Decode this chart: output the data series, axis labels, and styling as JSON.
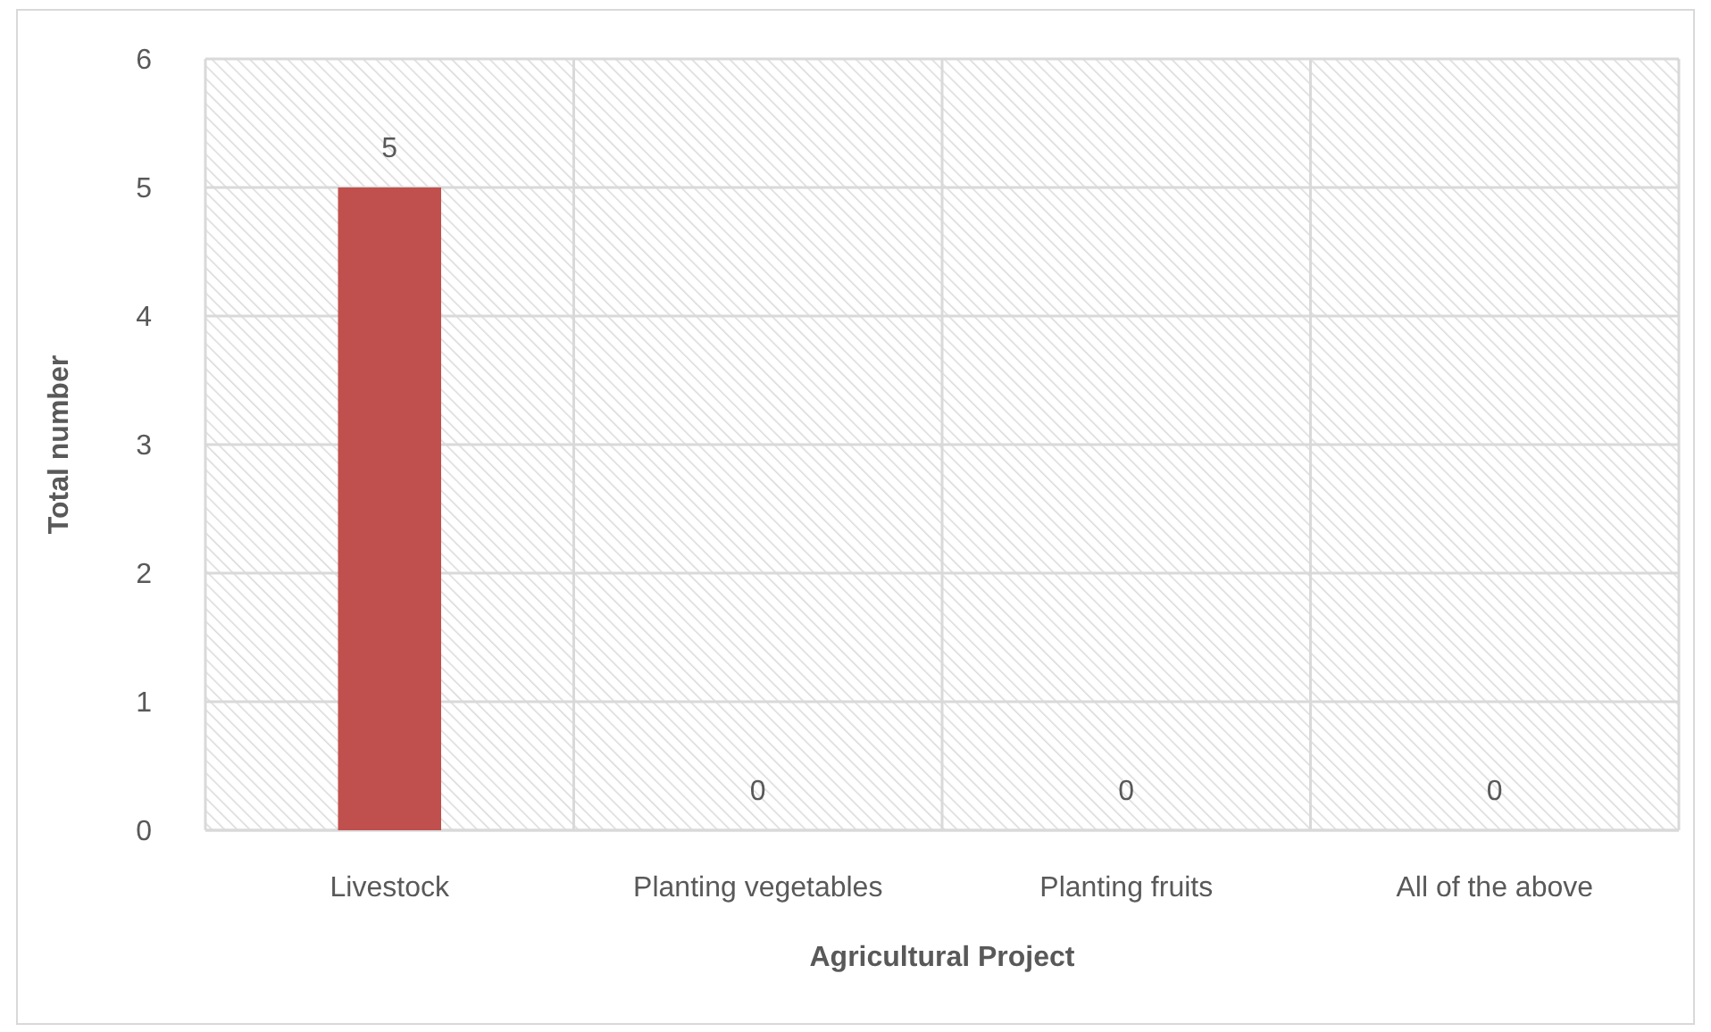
{
  "chart_data": {
    "type": "bar",
    "xlabel": "Agricultural Project",
    "ylabel": "Total number",
    "categories": [
      "Livestock",
      "Planting vegetables",
      "Planting fruits",
      "All of the above"
    ],
    "values": [
      5,
      0,
      0,
      0
    ],
    "color": "#c0504d",
    "ylim": [
      0,
      6
    ],
    "yticks": [
      0,
      1,
      2,
      3,
      4,
      5,
      6
    ],
    "grid": true,
    "data_labels": true
  }
}
